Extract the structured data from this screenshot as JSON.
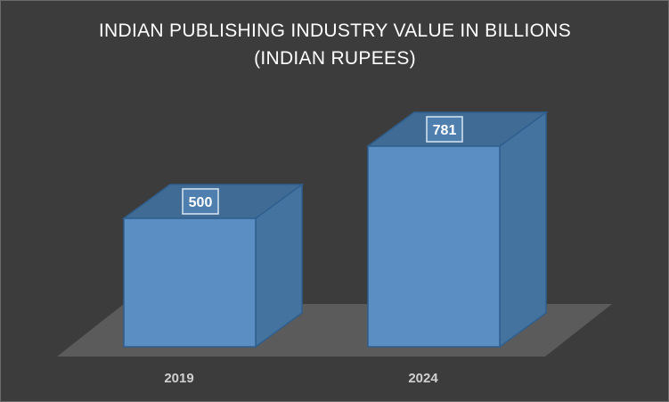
{
  "colors": {
    "background": "#3c3c3c",
    "floor": "#5b5b5b",
    "bar_front": "#5b8fc4",
    "bar_side": "#44739f",
    "bar_top": "#3f6b95",
    "label_box": "#4f7fae"
  },
  "chart_data": {
    "type": "bar",
    "style": "3d-column",
    "title_lines": [
      "INDIAN PUBLISHING INDUSTRY VALUE IN BILLIONS",
      "(INDIAN RUPEES)"
    ],
    "categories": [
      "2019",
      "2024"
    ],
    "values": [
      500,
      781
    ],
    "data_labels": [
      "500",
      "781"
    ],
    "xlabel": "",
    "ylabel": "",
    "ylim": [
      0,
      900
    ],
    "grid": false,
    "legend": "none"
  }
}
